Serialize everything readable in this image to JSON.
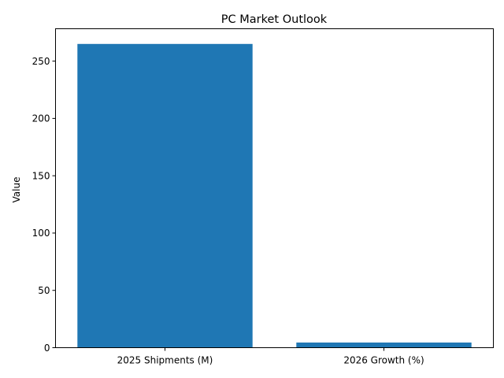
{
  "chart_data": {
    "type": "bar",
    "title": "PC Market Outlook",
    "xlabel": "",
    "ylabel": "Value",
    "categories": [
      "2025 Shipments (M)",
      "2026 Growth (%)"
    ],
    "values": [
      265,
      4.5
    ],
    "ylim": [
      0,
      278.25
    ],
    "yticks": [
      0,
      50,
      100,
      150,
      200,
      250
    ],
    "grid": false,
    "bar_color": "#1f77b4"
  }
}
